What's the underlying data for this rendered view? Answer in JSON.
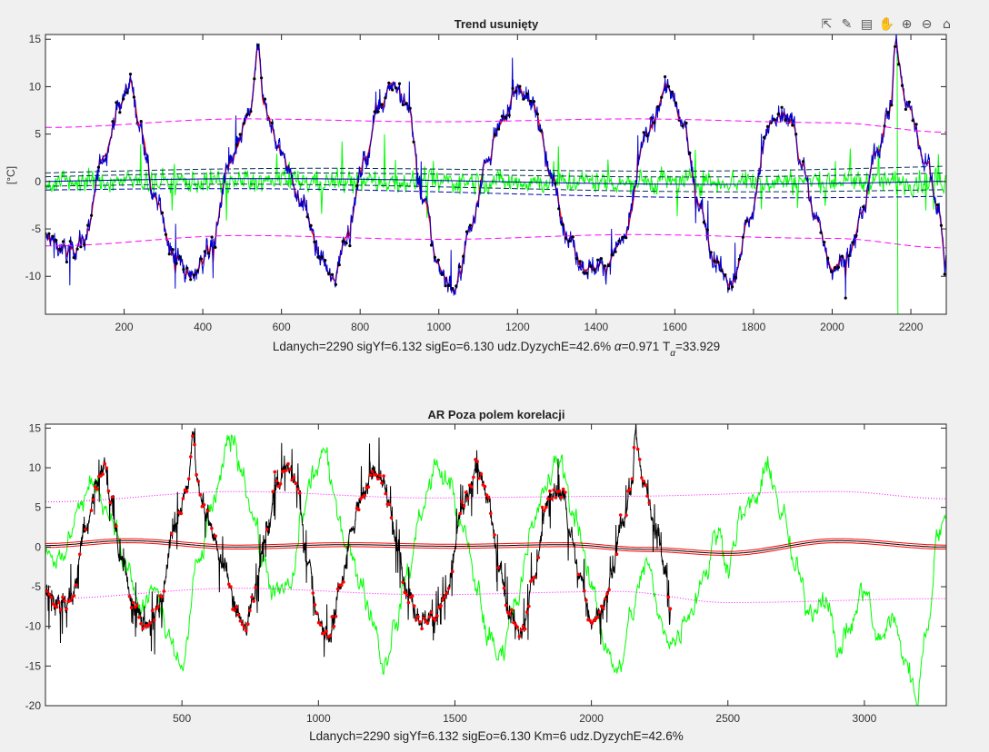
{
  "toolbar": {
    "icons": [
      "export-icon",
      "brush-icon",
      "datatip-icon",
      "pan-icon",
      "zoom-in-icon",
      "zoom-out-icon",
      "home-icon"
    ]
  },
  "chart_data": [
    {
      "type": "line",
      "title": "Trend usunięty",
      "xlabel_text": "Ldanych=2290 sigYf=6.132 sigEo=6.130 udz.DyzychE=42.6% ",
      "xlabel_alpha_value": "=0.971 T",
      "xlabel_alpha_sub": "α",
      "xlabel_t_value": "=33.929",
      "ylabel": "[°C]",
      "xlim": [
        0,
        2290
      ],
      "ylim": [
        -14,
        15.5
      ],
      "xticks": [
        200,
        400,
        600,
        800,
        1000,
        1200,
        1400,
        1600,
        1800,
        2000,
        2200
      ],
      "yticks": [
        15,
        10,
        5,
        0,
        -5,
        -10
      ],
      "colors": {
        "data": "#0000cc",
        "fit": "#ff0000",
        "points": "#000000",
        "residual": "#00ff00",
        "band": "#ff00ff",
        "trend": "#000080"
      },
      "series": [
        {
          "kind": "temperature",
          "x_start": 0,
          "x_end": 2290,
          "anchors": [
            [
              0,
              -6
            ],
            [
              60,
              -7.5
            ],
            [
              100,
              -6
            ],
            [
              150,
              3
            ],
            [
              190,
              8
            ],
            [
              215,
              10.5
            ],
            [
              240,
              6
            ],
            [
              280,
              -2
            ],
            [
              330,
              -8
            ],
            [
              370,
              -10
            ],
            [
              420,
              -7
            ],
            [
              470,
              2
            ],
            [
              520,
              7
            ],
            [
              540,
              14
            ],
            [
              555,
              8
            ],
            [
              600,
              3
            ],
            [
              650,
              -2
            ],
            [
              700,
              -8
            ],
            [
              730,
              -10.5
            ],
            [
              770,
              -5
            ],
            [
              810,
              2
            ],
            [
              850,
              8
            ],
            [
              880,
              10.5
            ],
            [
              920,
              8
            ],
            [
              960,
              -2
            ],
            [
              1000,
              -9
            ],
            [
              1040,
              -11.5
            ],
            [
              1080,
              -5
            ],
            [
              1120,
              2
            ],
            [
              1160,
              6
            ],
            [
              1200,
              10
            ],
            [
              1240,
              8
            ],
            [
              1290,
              0
            ],
            [
              1330,
              -6
            ],
            [
              1370,
              -9
            ],
            [
              1420,
              -9
            ],
            [
              1470,
              -6
            ],
            [
              1530,
              5
            ],
            [
              1580,
              10
            ],
            [
              1620,
              6
            ],
            [
              1660,
              -2
            ],
            [
              1700,
              -8
            ],
            [
              1745,
              -11
            ],
            [
              1790,
              -4
            ],
            [
              1840,
              6
            ],
            [
              1880,
              7
            ],
            [
              1900,
              6
            ],
            [
              1920,
              2
            ],
            [
              1960,
              -4
            ],
            [
              2000,
              -9
            ],
            [
              2040,
              -8
            ],
            [
              2080,
              -3
            ],
            [
              2110,
              3
            ],
            [
              2150,
              8
            ],
            [
              2160,
              14.5
            ],
            [
              2190,
              8
            ],
            [
              2240,
              2
            ],
            [
              2270,
              -3
            ],
            [
              2290,
              -9
            ]
          ]
        },
        {
          "kind": "residual",
          "amplitude": 2.5
        },
        {
          "kind": "band_upper",
          "anchors": [
            [
              0,
              5.7
            ],
            [
              500,
              6.6
            ],
            [
              1000,
              6.3
            ],
            [
              1500,
              6.6
            ],
            [
              2000,
              6.2
            ],
            [
              2290,
              5.2
            ]
          ]
        },
        {
          "kind": "band_lower",
          "anchors": [
            [
              0,
              -6.8
            ],
            [
              500,
              -5.7
            ],
            [
              1000,
              -6.1
            ],
            [
              1500,
              -5.6
            ],
            [
              2000,
              -6
            ],
            [
              2290,
              -7
            ]
          ]
        }
      ]
    },
    {
      "type": "line",
      "title": "AR Poza polem korelacji",
      "xlabel_text": "Ldanych=2290 sigYf=6.132 sigEo=6.130 Km=6 udz.DyzychE=42.6%",
      "ylabel": "",
      "xlim": [
        0,
        3300
      ],
      "ylim": [
        -20,
        15.5
      ],
      "xticks": [
        500,
        1000,
        1500,
        2000,
        2500,
        3000
      ],
      "yticks": [
        15,
        10,
        5,
        0,
        -5,
        -10,
        -15,
        -20
      ],
      "colors": {
        "data": "#000000",
        "points": "#ff0000",
        "forecast": "#00ff00",
        "band": "#ff00ff",
        "trend": "#800000"
      },
      "series": [
        {
          "kind": "forecast",
          "anchors": [
            [
              0,
              0
            ],
            [
              60,
              -2
            ],
            [
              120,
              5
            ],
            [
              180,
              8
            ],
            [
              240,
              4
            ],
            [
              300,
              -3
            ],
            [
              350,
              -8
            ],
            [
              400,
              -5
            ],
            [
              450,
              -12
            ],
            [
              500,
              -15
            ],
            [
              560,
              -2
            ],
            [
              620,
              6
            ],
            [
              680,
              14
            ],
            [
              720,
              10
            ],
            [
              760,
              4
            ],
            [
              800,
              -2
            ],
            [
              840,
              -6
            ],
            [
              900,
              -5
            ],
            [
              940,
              4
            ],
            [
              980,
              9
            ],
            [
              1020,
              12
            ],
            [
              1060,
              6
            ],
            [
              1100,
              1
            ],
            [
              1150,
              -4
            ],
            [
              1200,
              -9
            ],
            [
              1240,
              -15
            ],
            [
              1280,
              -10
            ],
            [
              1330,
              -3
            ],
            [
              1380,
              5
            ],
            [
              1430,
              10
            ],
            [
              1480,
              8
            ],
            [
              1530,
              2
            ],
            [
              1580,
              -5
            ],
            [
              1620,
              -11
            ],
            [
              1660,
              -14
            ],
            [
              1720,
              -7
            ],
            [
              1780,
              2
            ],
            [
              1840,
              8
            ],
            [
              1880,
              11
            ],
            [
              1940,
              4
            ],
            [
              2000,
              -5
            ],
            [
              2050,
              -12
            ],
            [
              2100,
              -16
            ],
            [
              2150,
              -8
            ],
            [
              2200,
              -2
            ],
            [
              2260,
              -10
            ],
            [
              2300,
              -12
            ],
            [
              2360,
              -8
            ],
            [
              2420,
              -3
            ],
            [
              2460,
              2
            ],
            [
              2500,
              -2
            ],
            [
              2550,
              4
            ],
            [
              2600,
              6
            ],
            [
              2650,
              10
            ],
            [
              2700,
              4
            ],
            [
              2750,
              -3
            ],
            [
              2800,
              -8
            ],
            [
              2860,
              -6
            ],
            [
              2900,
              -13
            ],
            [
              2950,
              -10
            ],
            [
              3000,
              -5
            ],
            [
              3050,
              -12
            ],
            [
              3100,
              -9
            ],
            [
              3150,
              -14
            ],
            [
              3190,
              -19
            ],
            [
              3230,
              -10
            ],
            [
              3270,
              2
            ],
            [
              3300,
              3
            ]
          ]
        },
        {
          "kind": "temperature",
          "x_end": 2290
        },
        {
          "kind": "band_upper",
          "anchors": [
            [
              0,
              5.7
            ],
            [
              700,
              7
            ],
            [
              1400,
              6.2
            ],
            [
              2100,
              6.4
            ],
            [
              2900,
              7
            ],
            [
              3300,
              6.1
            ]
          ]
        },
        {
          "kind": "band_lower",
          "anchors": [
            [
              0,
              -6.5
            ],
            [
              700,
              -5.2
            ],
            [
              1400,
              -6
            ],
            [
              2100,
              -5.6
            ],
            [
              2500,
              -7
            ],
            [
              3300,
              -6.5
            ]
          ]
        },
        {
          "kind": "trend",
          "anchors": [
            [
              0,
              0.2
            ],
            [
              300,
              0.8
            ],
            [
              700,
              0
            ],
            [
              1100,
              0.3
            ],
            [
              1500,
              0.1
            ],
            [
              1900,
              0.3
            ],
            [
              2200,
              -0.3
            ],
            [
              2500,
              -0.8
            ],
            [
              2900,
              0.8
            ],
            [
              3300,
              0
            ]
          ]
        }
      ]
    }
  ]
}
